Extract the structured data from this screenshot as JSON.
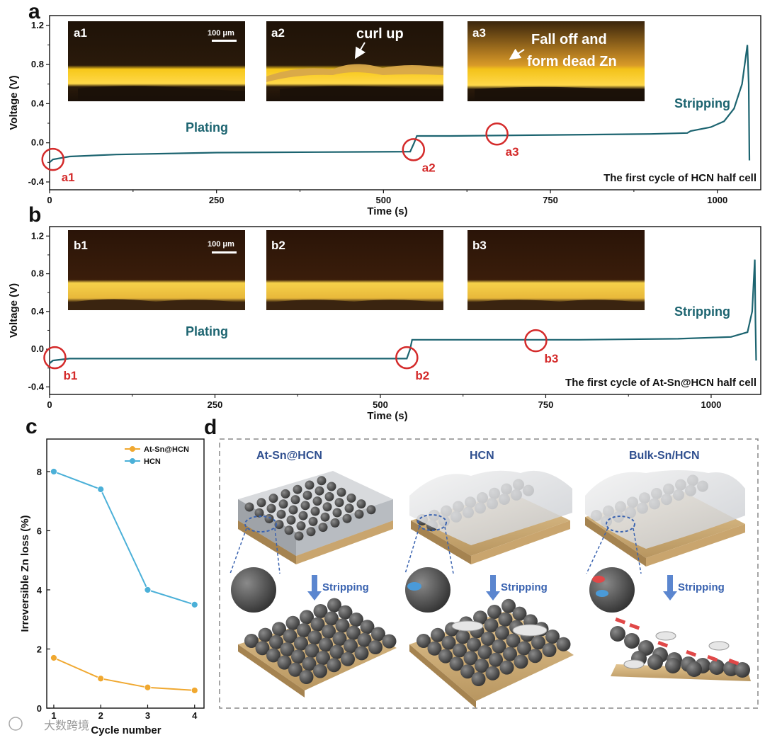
{
  "panel_letters": {
    "a": "a",
    "b": "b",
    "c": "c",
    "d": "d"
  },
  "watermark": "大数跨境",
  "chart_data": [
    {
      "panel": "a",
      "type": "line",
      "xlabel": "Time (s)",
      "ylabel": "Voltage (V)",
      "xlim": [
        0,
        1065
      ],
      "ylim": [
        -0.48,
        1.3
      ],
      "xticks": [
        0,
        250,
        500,
        750,
        1000
      ],
      "xtick_labels": [
        "0",
        "250",
        "500",
        "750",
        "1000"
      ],
      "yticks": [
        -0.4,
        0.0,
        0.4,
        0.8,
        1.2
      ],
      "ytick_labels": [
        "-0.4",
        "0.0",
        "0.4",
        "0.8",
        "1.2"
      ],
      "color": "#1c6470",
      "points": [
        [
          0,
          -0.2
        ],
        [
          5,
          -0.17
        ],
        [
          30,
          -0.14
        ],
        [
          100,
          -0.12
        ],
        [
          250,
          -0.1
        ],
        [
          400,
          -0.095
        ],
        [
          540,
          -0.09
        ],
        [
          546,
          0.0
        ],
        [
          550,
          0.07
        ],
        [
          600,
          0.07
        ],
        [
          750,
          0.08
        ],
        [
          900,
          0.09
        ],
        [
          955,
          0.1
        ],
        [
          960,
          0.12
        ],
        [
          990,
          0.16
        ],
        [
          1010,
          0.22
        ],
        [
          1025,
          0.35
        ],
        [
          1037,
          0.6
        ],
        [
          1045,
          1.0
        ],
        [
          1047,
          0.6
        ],
        [
          1048,
          -0.18
        ]
      ],
      "annotations": [
        {
          "label": "a1",
          "x": 5,
          "y": -0.17
        },
        {
          "label": "a2",
          "x": 545,
          "y": -0.07
        },
        {
          "label": "a3",
          "x": 670,
          "y": 0.09
        }
      ],
      "region_labels": {
        "plating": "Plating",
        "stripping": "Stripping"
      },
      "caption": "The first cycle of HCN half cell",
      "insets": [
        {
          "id": "a1",
          "label": "a1",
          "scale": "100 μm",
          "note": ""
        },
        {
          "id": "a2",
          "label": "a2",
          "scale": "",
          "note": "curl up"
        },
        {
          "id": "a3",
          "label": "a3",
          "scale": "",
          "note_line1": "Fall off and",
          "note_line2": "form dead Zn"
        }
      ]
    },
    {
      "panel": "b",
      "type": "line",
      "xlabel": "Time (s)",
      "ylabel": "Voltage (V)",
      "xlim": [
        0,
        1075
      ],
      "ylim": [
        -0.48,
        1.3
      ],
      "xticks": [
        0,
        250,
        500,
        750,
        1000
      ],
      "xtick_labels": [
        "0",
        "250",
        "500",
        "750",
        "1000"
      ],
      "yticks": [
        -0.4,
        0.0,
        0.4,
        0.8,
        1.2
      ],
      "ytick_labels": [
        "-0.4",
        "0.0",
        "0.4",
        "0.8",
        "1.2"
      ],
      "color": "#1c6470",
      "points": [
        [
          0,
          -0.15
        ],
        [
          5,
          -0.12
        ],
        [
          30,
          -0.1
        ],
        [
          100,
          -0.1
        ],
        [
          300,
          -0.1
        ],
        [
          540,
          -0.1
        ],
        [
          545,
          0.0
        ],
        [
          548,
          0.1
        ],
        [
          600,
          0.1
        ],
        [
          800,
          0.1
        ],
        [
          950,
          0.11
        ],
        [
          1030,
          0.13
        ],
        [
          1055,
          0.18
        ],
        [
          1062,
          0.4
        ],
        [
          1066,
          0.95
        ],
        [
          1067,
          0.3
        ],
        [
          1068,
          -0.12
        ]
      ],
      "annotations": [
        {
          "label": "b1",
          "x": 8,
          "y": -0.09
        },
        {
          "label": "b2",
          "x": 540,
          "y": -0.09
        },
        {
          "label": "b3",
          "x": 735,
          "y": 0.09
        }
      ],
      "region_labels": {
        "plating": "Plating",
        "stripping": "Stripping"
      },
      "caption": "The first cycle of At-Sn@HCN  half cell",
      "insets": [
        {
          "id": "b1",
          "label": "b1",
          "scale": "100 μm",
          "note": ""
        },
        {
          "id": "b2",
          "label": "b2",
          "scale": "",
          "note": ""
        },
        {
          "id": "b3",
          "label": "b3",
          "scale": "",
          "note": ""
        }
      ]
    },
    {
      "panel": "c",
      "type": "line",
      "xlabel": "Cycle number",
      "ylabel": "Irreversible Zn loss (%)",
      "xlim": [
        0.85,
        4.2
      ],
      "ylim": [
        0,
        9.1
      ],
      "xticks": [
        1,
        2,
        3,
        4
      ],
      "xtick_labels": [
        "1",
        "2",
        "3",
        "4"
      ],
      "yticks": [
        0,
        2,
        4,
        6,
        8
      ],
      "ytick_labels": [
        "0",
        "2",
        "4",
        "6",
        "8"
      ],
      "x": [
        1,
        2,
        3,
        4
      ],
      "series": [
        {
          "name": "At-Sn@HCN",
          "color": "#f0a830",
          "values": [
            1.7,
            1.0,
            0.7,
            0.6
          ]
        },
        {
          "name": "HCN",
          "color": "#4bb0d8",
          "values": [
            8.0,
            7.4,
            4.0,
            3.5
          ]
        }
      ],
      "legend_position": "top-right"
    }
  ],
  "schematic_d": {
    "columns": [
      {
        "title": "At-Sn@HCN",
        "action": "Stripping"
      },
      {
        "title": "HCN",
        "action": "Stripping"
      },
      {
        "title": "Bulk-Sn/HCN",
        "action": "Stripping"
      }
    ]
  }
}
